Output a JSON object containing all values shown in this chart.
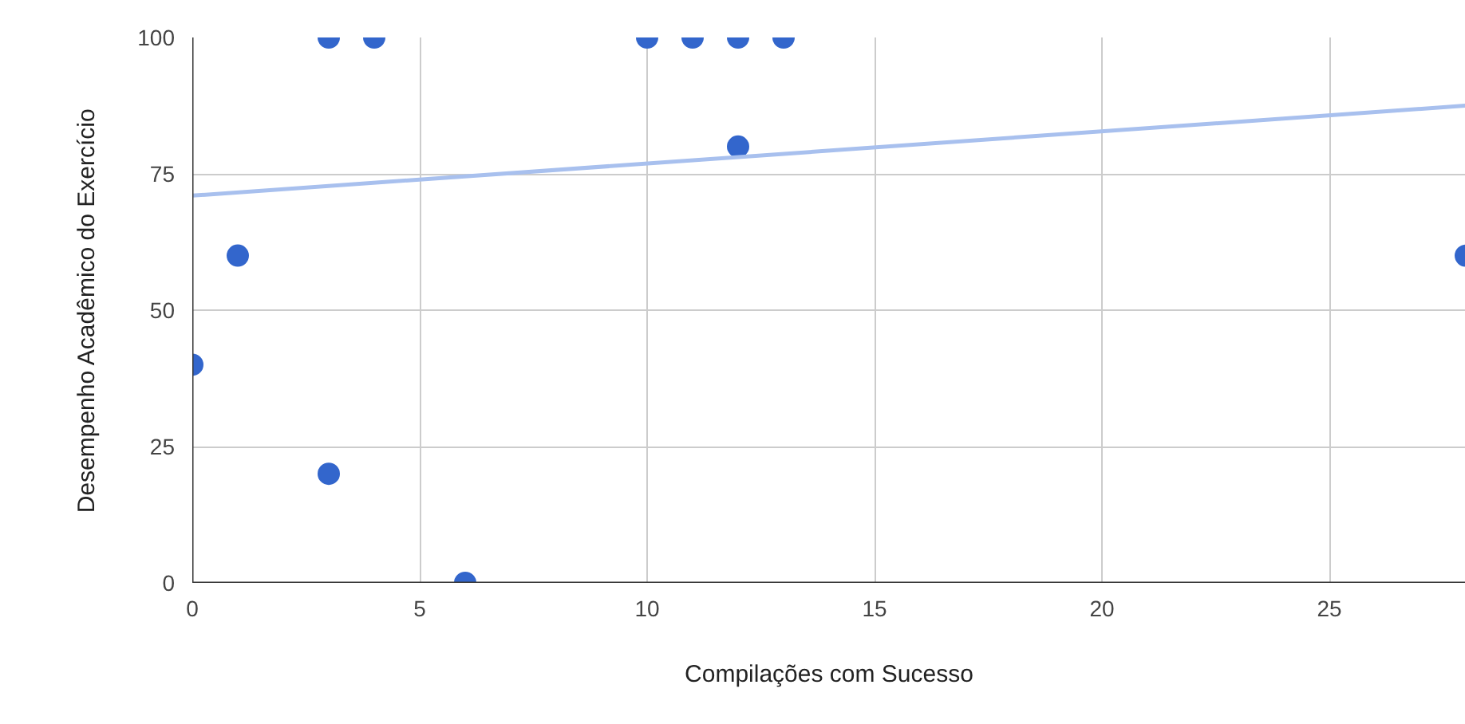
{
  "chart_data": {
    "type": "scatter",
    "xlabel": "Compilações com Sucesso",
    "ylabel": "Desempenho Acadêmico do Exercício",
    "xlim": [
      0,
      28
    ],
    "ylim": [
      0,
      100
    ],
    "xticks": [
      0,
      5,
      10,
      15,
      20,
      25
    ],
    "yticks": [
      0,
      25,
      50,
      75,
      100
    ],
    "grid": true,
    "series": [
      {
        "marker": "circle",
        "color": "#3366cc",
        "x": [
          0,
          1,
          3,
          4,
          3,
          6,
          10,
          11,
          12,
          13,
          12,
          28
        ],
        "values": [
          40,
          60,
          100,
          100,
          20,
          0,
          100,
          100,
          100,
          100,
          80,
          60
        ]
      },
      {
        "type": "line",
        "color": "#a8c0ee",
        "x": [
          0,
          28
        ],
        "values": [
          71,
          87.5
        ]
      }
    ]
  }
}
